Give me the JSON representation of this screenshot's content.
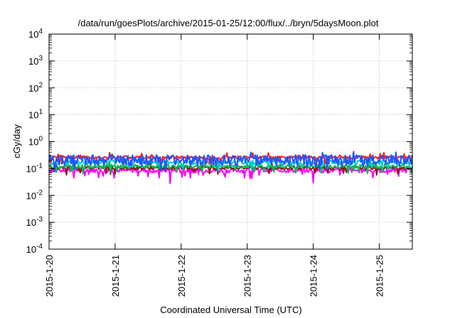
{
  "chart_data": {
    "type": "line",
    "title": "/data/run/goesPlots/archive/2015-01-25/12:00/flux/../bryn/5daysMoon.plot",
    "xlabel": "Coordinated Universal Time (UTC)",
    "ylabel": "cGy/day",
    "xlim": [
      "2015-01-20T00:00",
      "2015-01-25T12:00"
    ],
    "ylim": [
      0.0001,
      10000
    ],
    "yscale": "log",
    "grid": true,
    "legend": "none",
    "x_ticks": [
      "2015-1-20",
      "2015-1-21",
      "2015-1-22",
      "2015-1-23",
      "2015-1-24",
      "2015-1-25"
    ],
    "y_ticks": [
      {
        "value": 0.0001,
        "base": "10",
        "exp": "-4"
      },
      {
        "value": 0.001,
        "base": "10",
        "exp": "-3"
      },
      {
        "value": 0.01,
        "base": "10",
        "exp": "-2"
      },
      {
        "value": 0.1,
        "base": "10",
        "exp": "-1"
      },
      {
        "value": 1,
        "base": "10",
        "exp": "0"
      },
      {
        "value": 10,
        "base": "10",
        "exp": "1"
      },
      {
        "value": 100,
        "base": "10",
        "exp": "2"
      },
      {
        "value": 1000,
        "base": "10",
        "exp": "3"
      },
      {
        "value": 10000,
        "base": "10",
        "exp": "4"
      }
    ],
    "series": [
      {
        "color": "#ff00ff",
        "base": 0.085,
        "amp": 0.18,
        "dips": [
          [
            "2015-01-21T16:00",
            0.045
          ],
          [
            "2015-01-21T20:00",
            0.028
          ],
          [
            "2015-01-22T23:00",
            0.045
          ],
          [
            "2015-01-24T00:00",
            0.03
          ]
        ]
      },
      {
        "color": "#8b1a1a",
        "base": 0.105,
        "amp": 0.14,
        "dips": []
      },
      {
        "color": "#00bb55",
        "base": 0.12,
        "amp": 0.16,
        "dips": []
      },
      {
        "color": "#00cccc",
        "base": 0.17,
        "amp": 0.2,
        "dips": []
      },
      {
        "color": "#ff2020",
        "base": 0.26,
        "amp": 0.12,
        "dips": []
      },
      {
        "color": "#2255ff",
        "base": 0.22,
        "amp": 0.45,
        "dips": []
      }
    ]
  }
}
